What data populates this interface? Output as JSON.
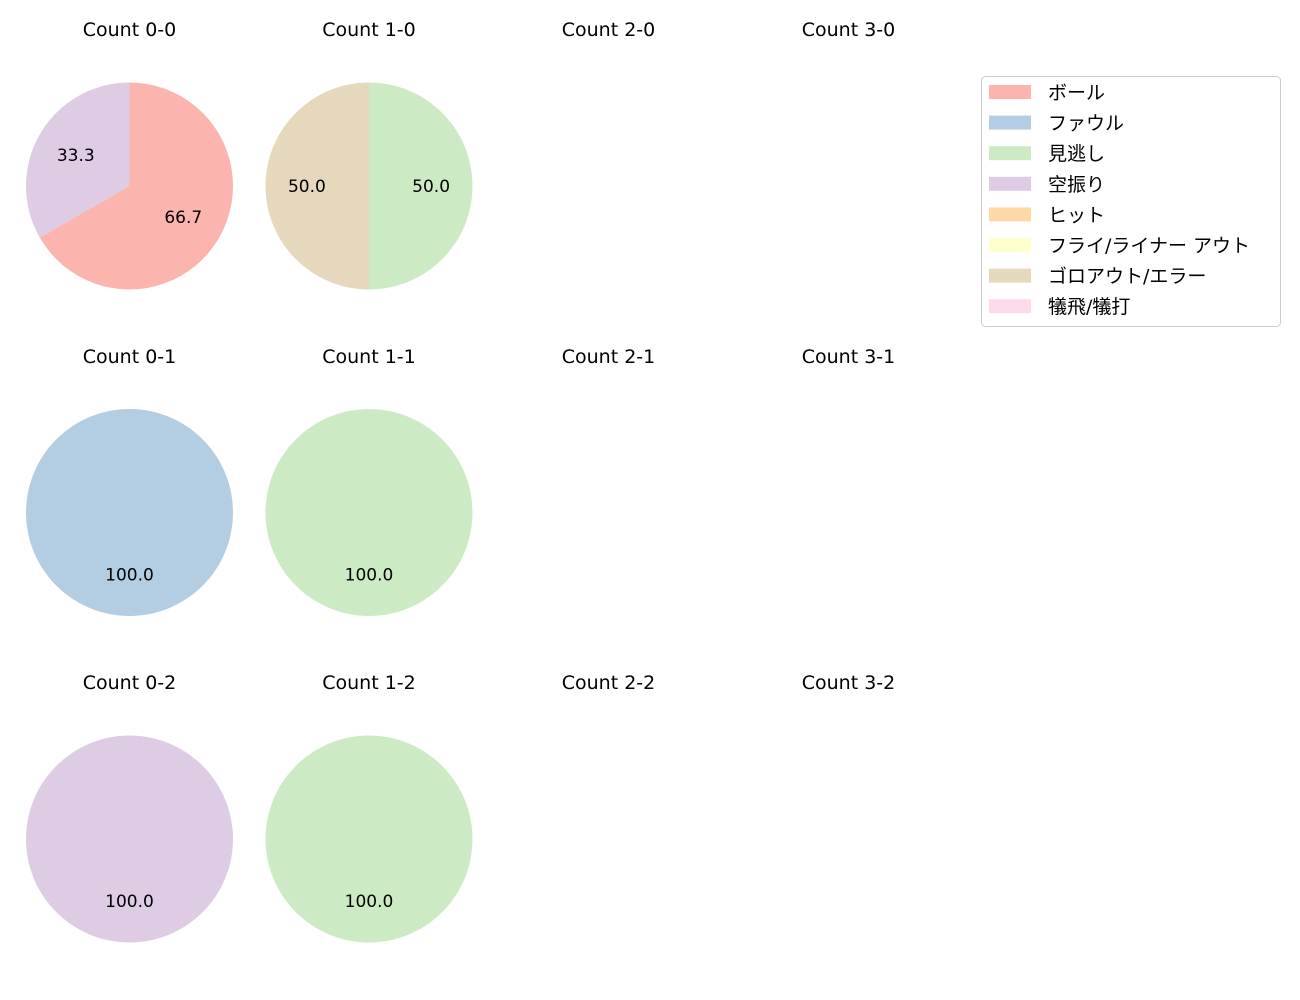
{
  "chart_data": {
    "type": "pie",
    "legend": {
      "placement": "top-right",
      "entries": [
        {
          "label": "ボール",
          "color": "#fbb4ae"
        },
        {
          "label": "ファウル",
          "color": "#b3cde3"
        },
        {
          "label": "見逃し",
          "color": "#ccebc5"
        },
        {
          "label": "空振り",
          "color": "#decbe4"
        },
        {
          "label": "ヒット",
          "color": "#fed9a6"
        },
        {
          "label": "フライ/ライナー アウト",
          "color": "#ffffcc"
        },
        {
          "label": "ゴロアウト/エラー",
          "color": "#e5d8bd"
        },
        {
          "label": "犠飛/犠打",
          "color": "#fddaec"
        }
      ]
    },
    "charts": [
      {
        "title": "Count 0-0",
        "slices": [
          {
            "label": "ボール",
            "value": 66.7
          },
          {
            "label": "空振り",
            "value": 33.3
          }
        ]
      },
      {
        "title": "Count 1-0",
        "slices": [
          {
            "label": "見逃し",
            "value": 50.0
          },
          {
            "label": "ゴロアウト/エラー",
            "value": 50.0
          }
        ]
      },
      {
        "title": "Count 2-0",
        "slices": []
      },
      {
        "title": "Count 3-0",
        "slices": []
      },
      {
        "title": "Count 0-1",
        "slices": [
          {
            "label": "ファウル",
            "value": 100.0
          }
        ]
      },
      {
        "title": "Count 1-1",
        "slices": [
          {
            "label": "見逃し",
            "value": 100.0
          }
        ]
      },
      {
        "title": "Count 2-1",
        "slices": []
      },
      {
        "title": "Count 3-1",
        "slices": []
      },
      {
        "title": "Count 0-2",
        "slices": [
          {
            "label": "空振り",
            "value": 100.0
          }
        ]
      },
      {
        "title": "Count 1-2",
        "slices": [
          {
            "label": "見逃し",
            "value": 100.0
          }
        ]
      },
      {
        "title": "Count 2-2",
        "slices": []
      },
      {
        "title": "Count 3-2",
        "slices": []
      }
    ]
  }
}
